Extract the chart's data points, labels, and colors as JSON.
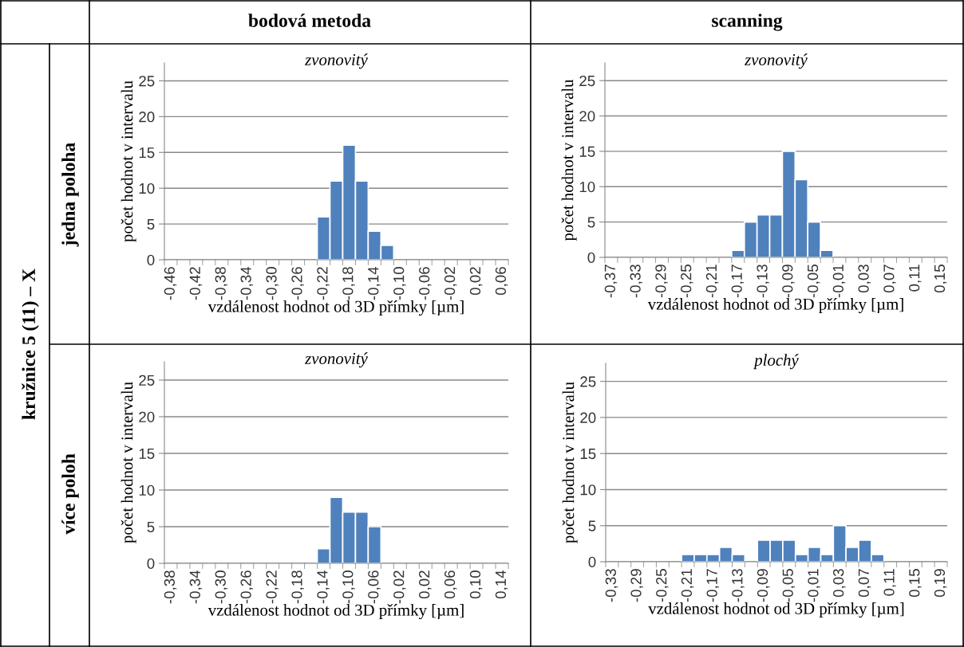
{
  "chart_data": [
    {
      "type": "bar",
      "title": "zvonovitý",
      "xlabel": "vzdálenost hodnot od 3D přímky [µm]",
      "ylabel": "počet hodnot v intervalu",
      "annotations": [
        "bodová metoda",
        "jedna poloha",
        "kružnice 5 (11) – X"
      ],
      "categories": [
        "-0,46",
        null,
        "-0,42",
        null,
        "-0,38",
        null,
        "-0,34",
        null,
        "-0,30",
        null,
        "-0,26",
        null,
        "-0,22",
        null,
        "-0,18",
        null,
        "-0,14",
        null,
        "-0,10",
        null,
        "-0,06",
        null,
        "-0,02",
        null,
        "0,02",
        null,
        "0,06"
      ],
      "values": [
        0,
        0,
        0,
        0,
        0,
        0,
        0,
        0,
        0,
        0,
        0,
        0,
        6,
        11,
        16,
        11,
        4,
        2,
        0,
        0,
        0,
        0,
        0,
        0,
        0,
        0,
        0
      ],
      "color": "#4f81bd",
      "ylim": [
        0,
        27.5
      ],
      "yticks": [
        0,
        5,
        10,
        15,
        20,
        25
      ],
      "grid": "y"
    },
    {
      "type": "bar",
      "title": "zvonovitý",
      "xlabel": "vzdálenost hodnot od 3D přímky [µm]",
      "ylabel": "počet hodnot v intervalu",
      "annotations": [
        "scanning"
      ],
      "categories": [
        "-0,37",
        null,
        "-0,33",
        null,
        "-0,29",
        null,
        "-0,25",
        null,
        "-0,21",
        null,
        "-0,17",
        null,
        "-0,13",
        null,
        "-0,09",
        null,
        "-0,05",
        null,
        "-0,01",
        null,
        "0,03",
        null,
        "0,07",
        null,
        "0,11",
        null,
        "0,15"
      ],
      "values": [
        0,
        0,
        0,
        0,
        0,
        0,
        0,
        0,
        0,
        0,
        1,
        5,
        6,
        6,
        15,
        11,
        5,
        1,
        0,
        0,
        0,
        0,
        0,
        0,
        0,
        0,
        0
      ],
      "color": "#4f81bd",
      "ylim": [
        0,
        27.5
      ],
      "yticks": [
        0,
        5,
        10,
        15,
        20,
        25
      ],
      "grid": "y"
    },
    {
      "type": "bar",
      "title": "zvonovitý",
      "xlabel": "vzdálenost hodnot od 3D přímky [µm]",
      "ylabel": "počet hodnot v intervalu",
      "annotations": [
        "více poloh"
      ],
      "categories": [
        "-0,38",
        null,
        "-0,34",
        null,
        "-0,30",
        null,
        "-0,26",
        null,
        "-0,22",
        null,
        "-0,18",
        null,
        "-0,14",
        null,
        "-0,10",
        null,
        "-0,06",
        null,
        "-0,02",
        null,
        "0,02",
        null,
        "0,06",
        null,
        "0,10",
        null,
        "0,14"
      ],
      "values": [
        0,
        0,
        0,
        0,
        0,
        0,
        0,
        0,
        0,
        0,
        0,
        0,
        2,
        9,
        7,
        7,
        5,
        0,
        0,
        0,
        0,
        0,
        0,
        0,
        0,
        0,
        0
      ],
      "color": "#4f81bd",
      "ylim": [
        0,
        27.5
      ],
      "yticks": [
        0,
        5,
        10,
        15,
        20,
        25
      ],
      "grid": "y"
    },
    {
      "type": "bar",
      "title": "plochý",
      "xlabel": "vzdálenost hodnot od 3D přímky [µm]",
      "ylabel": "počet hodnot v intervalu",
      "categories": [
        "-0,33",
        null,
        "-0,29",
        null,
        "-0,25",
        null,
        "-0,21",
        null,
        "-0,17",
        null,
        "-0,13",
        null,
        "-0,09",
        null,
        "-0,05",
        null,
        "-0,01",
        null,
        "0,03",
        null,
        "0,07",
        null,
        "0,11",
        null,
        "0,15",
        null,
        "0,19"
      ],
      "values": [
        0,
        0,
        0,
        0,
        0,
        0,
        1,
        1,
        1,
        2,
        1,
        0,
        3,
        3,
        3,
        1,
        2,
        1,
        5,
        2,
        3,
        1,
        0,
        0,
        0,
        0,
        0
      ],
      "color": "#4f81bd",
      "ylim": [
        0,
        27.5
      ],
      "yticks": [
        0,
        5,
        10,
        15,
        20,
        25
      ],
      "grid": "y"
    }
  ]
}
